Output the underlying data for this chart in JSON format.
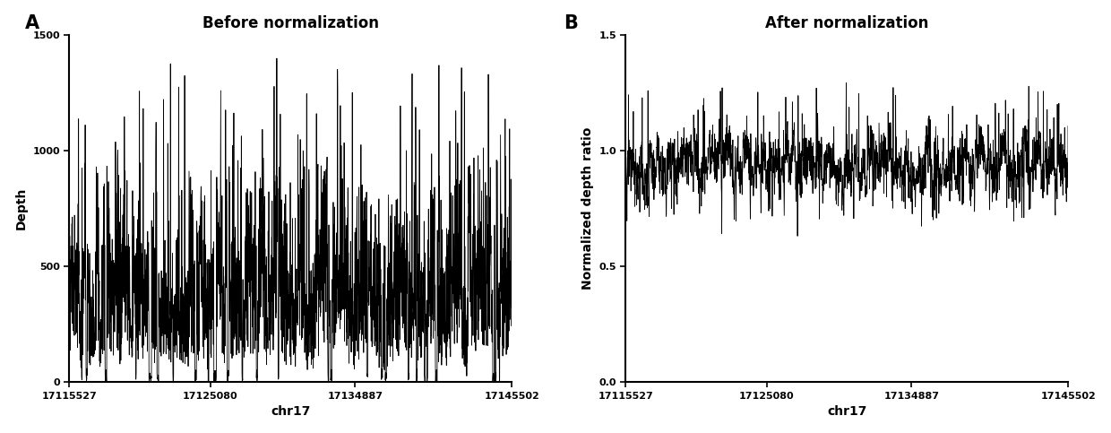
{
  "panel_A": {
    "title": "Before normalization",
    "xlabel": "chr17",
    "ylabel": "Depth",
    "xlim": [
      17115527,
      17145502
    ],
    "ylim": [
      0,
      1500
    ],
    "yticks": [
      0,
      500,
      1000,
      1500
    ],
    "xticks": [
      17115527,
      17125080,
      17134887,
      17145502
    ],
    "panel_label": "A"
  },
  "panel_B": {
    "title": "After normalization",
    "xlabel": "chr17",
    "ylabel": "Normalized depth ratio",
    "xlim": [
      17115527,
      17145502
    ],
    "ylim": [
      0.0,
      1.5
    ],
    "yticks": [
      0.0,
      0.5,
      1.0,
      1.5
    ],
    "xticks": [
      17115527,
      17125080,
      17134887,
      17145502
    ],
    "panel_label": "B"
  },
  "line_color": "#000000",
  "line_width": 0.6,
  "bg_color": "#ffffff",
  "seed": 99,
  "n_points": 2000
}
